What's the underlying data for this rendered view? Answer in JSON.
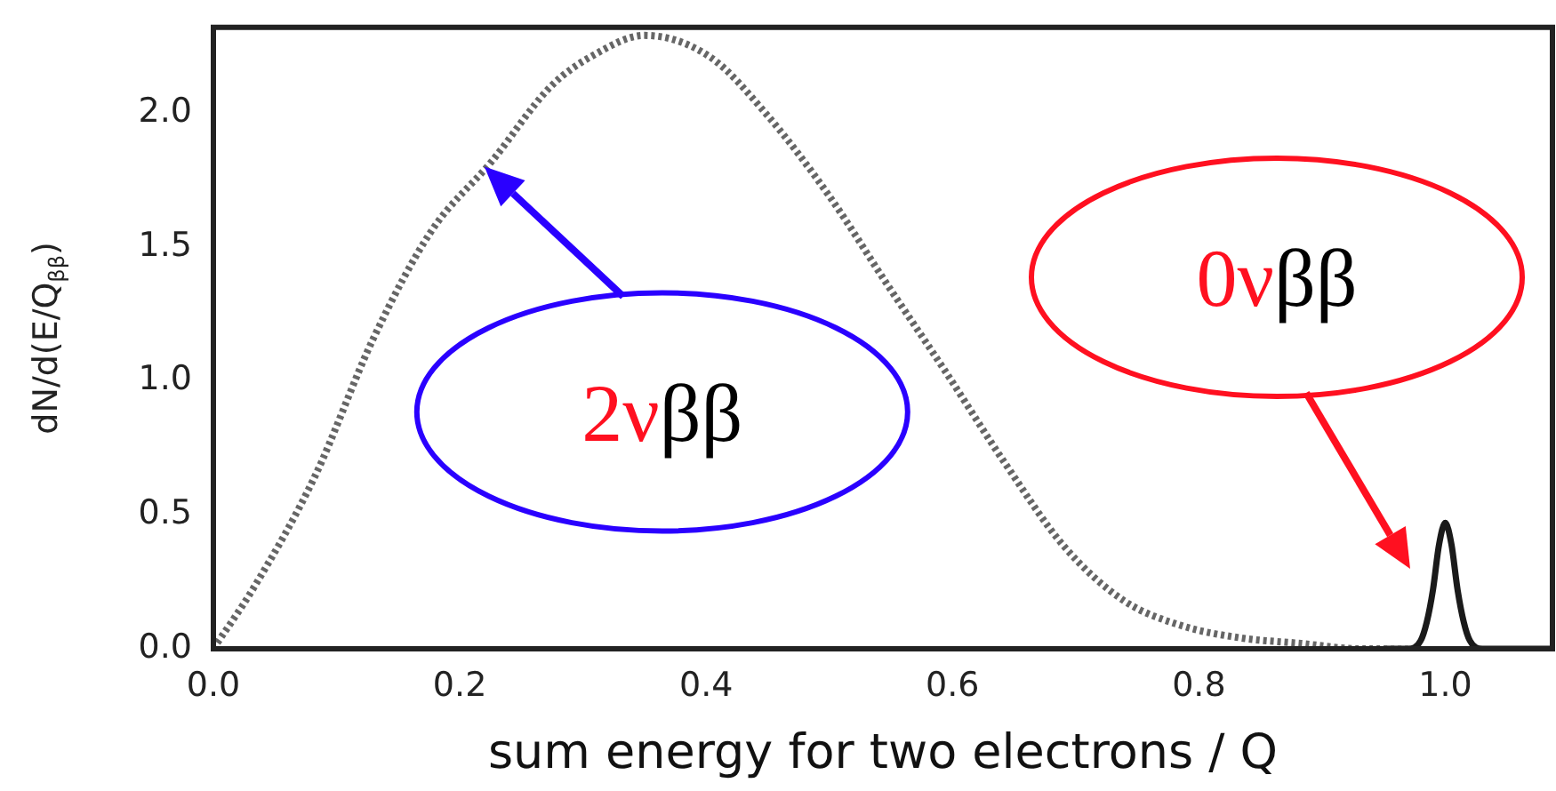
{
  "chart_data": {
    "type": "line",
    "xlabel": "sum energy for two electrons / Q",
    "ylabel": "dN/d(E/Q$_{ββ}$)",
    "xlim": [
      0,
      1.087
    ],
    "ylim": [
      0,
      2.32
    ],
    "xticks": [
      {
        "value": 0,
        "label": "0.0"
      },
      {
        "value": 0.2,
        "label": "0.2"
      },
      {
        "value": 0.4,
        "label": "0.4"
      },
      {
        "value": 0.6,
        "label": "0.6"
      },
      {
        "value": 0.8,
        "label": "0.8"
      },
      {
        "value": 1,
        "label": "1.0"
      }
    ],
    "yticks": [
      {
        "value": 0,
        "label": "0.0"
      },
      {
        "value": 0.5,
        "label": "0.5"
      },
      {
        "value": 1,
        "label": "1.0"
      },
      {
        "value": 1.5,
        "label": "1.5"
      },
      {
        "value": 2,
        "label": "2.0"
      }
    ],
    "series": [
      {
        "color": "#666666",
        "line_style": "dotted",
        "x": [
          0,
          0.033,
          0.082,
          0.13,
          0.177,
          0.226,
          0.274,
          0.31,
          0.35,
          0.403,
          0.45,
          0.5,
          0.547,
          0.595,
          0.643,
          0.691,
          0.739,
          0.787,
          0.835,
          0.883,
          0.93,
          0.97
        ],
        "values": [
          0,
          0.23,
          0.64,
          1.16,
          1.56,
          1.82,
          2.1,
          2.22,
          2.29,
          2.21,
          1.99,
          1.69,
          1.36,
          1.03,
          0.69,
          0.38,
          0.18,
          0.085,
          0.04,
          0.02,
          0,
          0
        ]
      },
      {
        "color": "#1a1a1a",
        "line_style": "solid",
        "x": [
          0.95,
          0.97,
          0.98,
          0.985,
          0.99,
          0.995,
          1,
          1.005,
          1.01,
          1.015,
          1.02,
          1.03,
          1.087
        ],
        "values": [
          0,
          0,
          0.03,
          0.1,
          0.22,
          0.39,
          0.47,
          0.39,
          0.22,
          0.1,
          0.03,
          0,
          0
        ]
      }
    ],
    "annotations": [
      {
        "text": "2νββ",
        "x": 0.22,
        "y": 1.8
      },
      "0νββ"
    ]
  }
}
